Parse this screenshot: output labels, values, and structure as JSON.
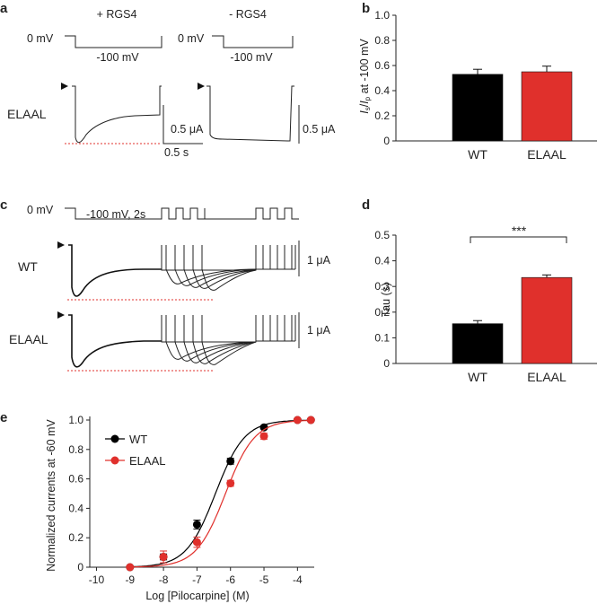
{
  "panels": {
    "a": {
      "letter": "a",
      "cond_left": "+ RGS4",
      "cond_right": "- RGS4",
      "hold_left": "0 mV",
      "hold_right": "0 mV",
      "step_left": "-100 mV",
      "step_right": "-100 mV",
      "row_label": "ELAAL",
      "scale_current_left": "0.5 μA",
      "scale_current_right": "0.5 μA",
      "scale_time": "0.5 s"
    },
    "b": {
      "letter": "b"
    },
    "c": {
      "letter": "c",
      "hold": "0 mV",
      "step": "-100 mV, 2s",
      "row1": "WT",
      "row2": "ELAAL",
      "scale1": "1 μA",
      "scale2": "1 μA"
    },
    "d": {
      "letter": "d",
      "significance": "***"
    },
    "e": {
      "letter": "e"
    }
  },
  "colors": {
    "wt": "#000000",
    "elaal": "#e0302c",
    "axis": "#222222"
  },
  "chart_data": [
    {
      "id": "b",
      "type": "bar",
      "categories": [
        "WT",
        "ELAAL"
      ],
      "values": [
        0.53,
        0.55
      ],
      "errors": [
        0.04,
        0.045
      ],
      "colors": [
        "#000000",
        "#e0302c"
      ],
      "ylabel": "Is/Ip at -100 mV",
      "ylim": [
        0,
        1.0
      ],
      "yticks": [
        "0",
        "0.2",
        "0.4",
        "0.6",
        "0.8",
        "1.0"
      ]
    },
    {
      "id": "d",
      "type": "bar",
      "categories": [
        "WT",
        "ELAAL"
      ],
      "values": [
        0.155,
        0.335
      ],
      "errors": [
        0.012,
        0.01
      ],
      "colors": [
        "#000000",
        "#e0302c"
      ],
      "ylabel": "Tau (s)",
      "ylim": [
        0,
        0.5
      ],
      "yticks": [
        "0",
        "0.1",
        "0.2",
        "0.3",
        "0.4",
        "0.5"
      ]
    },
    {
      "id": "e",
      "type": "line",
      "xlabel": "Log [Pilocarpine] (M)",
      "ylabel": "Normalized currents at -60 mV",
      "xlim": [
        -10.2,
        -3.5
      ],
      "ylim": [
        0,
        1.0
      ],
      "xticks": [
        "-10",
        "-9",
        "-8",
        "-7",
        "-6",
        "-5",
        "-4"
      ],
      "yticks": [
        "0",
        "0.2",
        "0.4",
        "0.6",
        "0.8",
        "1.0"
      ],
      "legend_position": "top-left",
      "series": [
        {
          "name": "WT",
          "color": "#000000",
          "ec50": -6.45,
          "hill": 1.0,
          "points": [
            {
              "x": -9,
              "y": 0.0,
              "err": 0.0
            },
            {
              "x": -8,
              "y": 0.07,
              "err": 0.02
            },
            {
              "x": -7,
              "y": 0.29,
              "err": 0.03
            },
            {
              "x": -6,
              "y": 0.72,
              "err": 0.02
            },
            {
              "x": -5,
              "y": 0.95,
              "err": 0.01
            },
            {
              "x": -4,
              "y": 1.0,
              "err": 0.0
            },
            {
              "x": -3.6,
              "y": 1.0,
              "err": 0.0
            }
          ]
        },
        {
          "name": "ELAAL",
          "color": "#e0302c",
          "ec50": -6.15,
          "hill": 1.0,
          "points": [
            {
              "x": -9,
              "y": 0.0,
              "err": 0.0
            },
            {
              "x": -8,
              "y": 0.07,
              "err": 0.04
            },
            {
              "x": -7,
              "y": 0.17,
              "err": 0.035
            },
            {
              "x": -6,
              "y": 0.57,
              "err": 0.02
            },
            {
              "x": -5,
              "y": 0.89,
              "err": 0.02
            },
            {
              "x": -4,
              "y": 1.0,
              "err": 0.0
            },
            {
              "x": -3.6,
              "y": 1.0,
              "err": 0.0
            }
          ]
        }
      ]
    }
  ]
}
